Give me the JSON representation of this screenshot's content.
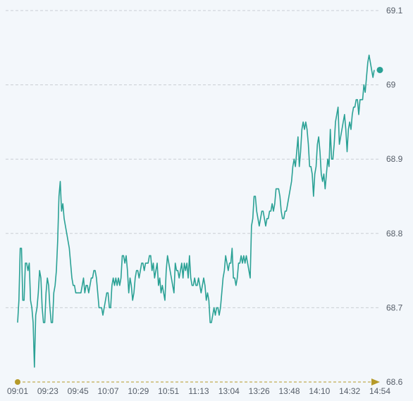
{
  "chart_data": {
    "type": "line",
    "x_tick_labels": [
      "09:01",
      "09:23",
      "09:45",
      "10:07",
      "10:29",
      "10:51",
      "11:13",
      "13:04",
      "13:26",
      "13:48",
      "14:10",
      "14:32",
      "14:54"
    ],
    "y_tick_labels": [
      "68.6",
      "68.7",
      "68.8",
      "68.9",
      "69",
      "69.1"
    ],
    "ylim": [
      68.6,
      69.1
    ],
    "grid": "horizontal dashed",
    "colors": {
      "line": "#2aa195",
      "axis": "#b59a2a",
      "grid": "#c9ced4",
      "text": "#555d68",
      "background": "#f3f7fb"
    },
    "series": [
      {
        "values": [
          68.68,
          68.71,
          68.78,
          68.78,
          68.71,
          68.71,
          68.76,
          68.76,
          68.75,
          68.76,
          68.71,
          68.7,
          68.68,
          68.62,
          68.69,
          68.7,
          68.72,
          68.75,
          68.74,
          68.7,
          68.68,
          68.68,
          68.72,
          68.74,
          68.73,
          68.7,
          68.68,
          68.68,
          68.72,
          68.73,
          68.75,
          68.79,
          68.85,
          68.87,
          68.83,
          68.84,
          68.82,
          68.81,
          68.8,
          68.79,
          68.78,
          68.76,
          68.74,
          68.73,
          68.73,
          68.72,
          68.72,
          68.72,
          68.72,
          68.72,
          68.73,
          68.74,
          68.72,
          68.73,
          68.73,
          68.72,
          68.73,
          68.74,
          68.74,
          68.75,
          68.75,
          68.74,
          68.72,
          68.7,
          68.7,
          68.7,
          68.69,
          68.7,
          68.71,
          68.72,
          68.72,
          68.7,
          68.7,
          68.73,
          68.74,
          68.73,
          68.74,
          68.73,
          68.74,
          68.73,
          68.74,
          68.77,
          68.77,
          68.76,
          68.77,
          68.75,
          68.72,
          68.74,
          68.73,
          68.71,
          68.72,
          68.74,
          68.75,
          68.75,
          68.74,
          68.75,
          68.76,
          68.76,
          68.75,
          68.76,
          68.76,
          68.76,
          68.77,
          68.77,
          68.75,
          68.76,
          68.74,
          68.75,
          68.76,
          68.73,
          68.74,
          68.72,
          68.73,
          68.72,
          68.71,
          68.75,
          68.77,
          68.76,
          68.75,
          68.74,
          68.73,
          68.72,
          68.76,
          68.75,
          68.75,
          68.74,
          68.75,
          68.76,
          68.74,
          68.76,
          68.75,
          68.76,
          68.74,
          68.77,
          68.74,
          68.73,
          68.73,
          68.74,
          68.73,
          68.73,
          68.74,
          68.73,
          68.72,
          68.73,
          68.74,
          68.73,
          68.71,
          68.72,
          68.71,
          68.68,
          68.68,
          68.69,
          68.7,
          68.69,
          68.7,
          68.7,
          68.69,
          68.7,
          68.72,
          68.74,
          68.75,
          68.77,
          68.76,
          68.75,
          68.76,
          68.76,
          68.78,
          68.74,
          68.74,
          68.73,
          68.74,
          68.76,
          68.76,
          68.77,
          68.76,
          68.77,
          68.76,
          68.77,
          68.76,
          68.75,
          68.74,
          68.81,
          68.82,
          68.85,
          68.85,
          68.83,
          68.82,
          68.81,
          68.82,
          68.83,
          68.83,
          68.82,
          68.81,
          68.82,
          68.82,
          68.83,
          68.83,
          68.84,
          68.83,
          68.84,
          68.86,
          68.86,
          68.86,
          68.85,
          68.83,
          68.82,
          68.82,
          68.83,
          68.83,
          68.84,
          68.85,
          68.86,
          68.87,
          68.89,
          68.9,
          68.89,
          68.91,
          68.93,
          68.89,
          68.91,
          68.94,
          68.95,
          68.94,
          68.95,
          68.94,
          68.92,
          68.89,
          68.89,
          68.88,
          68.85,
          68.88,
          68.89,
          68.92,
          68.93,
          68.91,
          68.88,
          68.87,
          68.88,
          68.86,
          68.88,
          68.9,
          68.89,
          68.94,
          68.9,
          68.9,
          68.92,
          68.95,
          68.96,
          68.97,
          68.92,
          68.93,
          68.94,
          68.95,
          68.96,
          68.94,
          68.91,
          68.94,
          68.95,
          68.94,
          68.96,
          68.97,
          68.97,
          68.98,
          68.98,
          68.96,
          68.98,
          68.98,
          68.98,
          69.0,
          68.99,
          69.01,
          69.03,
          69.04,
          69.03,
          69.02,
          69.01,
          69.02
        ]
      }
    ]
  }
}
